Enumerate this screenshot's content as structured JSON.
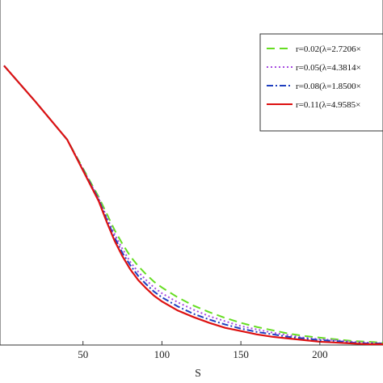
{
  "chart_data": {
    "type": "line",
    "title": "",
    "xlabel": "S",
    "ylabel": "",
    "xlim": [
      0,
      240
    ],
    "x_ticks": [
      50,
      100,
      150,
      200
    ],
    "x_tick_labels": [
      "50",
      "100",
      "150",
      "200"
    ],
    "grid": false,
    "legend_position": "top-right",
    "x": [
      0,
      20,
      40,
      60,
      65,
      70,
      75,
      80,
      85,
      90,
      95,
      100,
      110,
      120,
      130,
      140,
      150,
      160,
      170,
      180,
      190,
      200,
      210,
      220,
      230,
      240
    ],
    "series": [
      {
        "name": "r=0.02(λ=2.7206×",
        "color": "#66dd22",
        "dash": "10,6",
        "values": [
          340,
          296,
          250,
          180,
          160,
          140,
          123,
          108,
          96,
          86,
          77,
          70,
          58,
          48,
          40,
          33,
          27,
          22,
          18,
          14,
          11,
          9,
          7,
          5,
          4,
          3
        ]
      },
      {
        "name": "r=0.05(λ=4.3814×",
        "color": "#a64ce0",
        "dash": "2,3",
        "values": [
          340,
          296,
          250,
          178,
          156,
          135,
          117,
          101,
          89,
          79,
          70,
          63,
          52,
          43,
          35,
          29,
          23,
          19,
          15,
          12,
          9,
          7,
          6,
          4,
          3,
          2
        ]
      },
      {
        "name": "r=0.08(λ=1.8500×",
        "color": "#1f3fbf",
        "dash": "8,3,2,3",
        "values": [
          340,
          296,
          250,
          177,
          153,
          131,
          112,
          97,
          84,
          74,
          65,
          58,
          47,
          38,
          31,
          25,
          20,
          16,
          13,
          10,
          8,
          6,
          5,
          3,
          2,
          2
        ]
      },
      {
        "name": "r=0.11(λ=4.9585×",
        "color": "#dd1111",
        "dash": "",
        "values": [
          340,
          296,
          250,
          175,
          150,
          127,
          108,
          92,
          79,
          69,
          60,
          53,
          42,
          34,
          27,
          21,
          17,
          13,
          10,
          8,
          6,
          4,
          3,
          2,
          1,
          1
        ]
      }
    ]
  }
}
